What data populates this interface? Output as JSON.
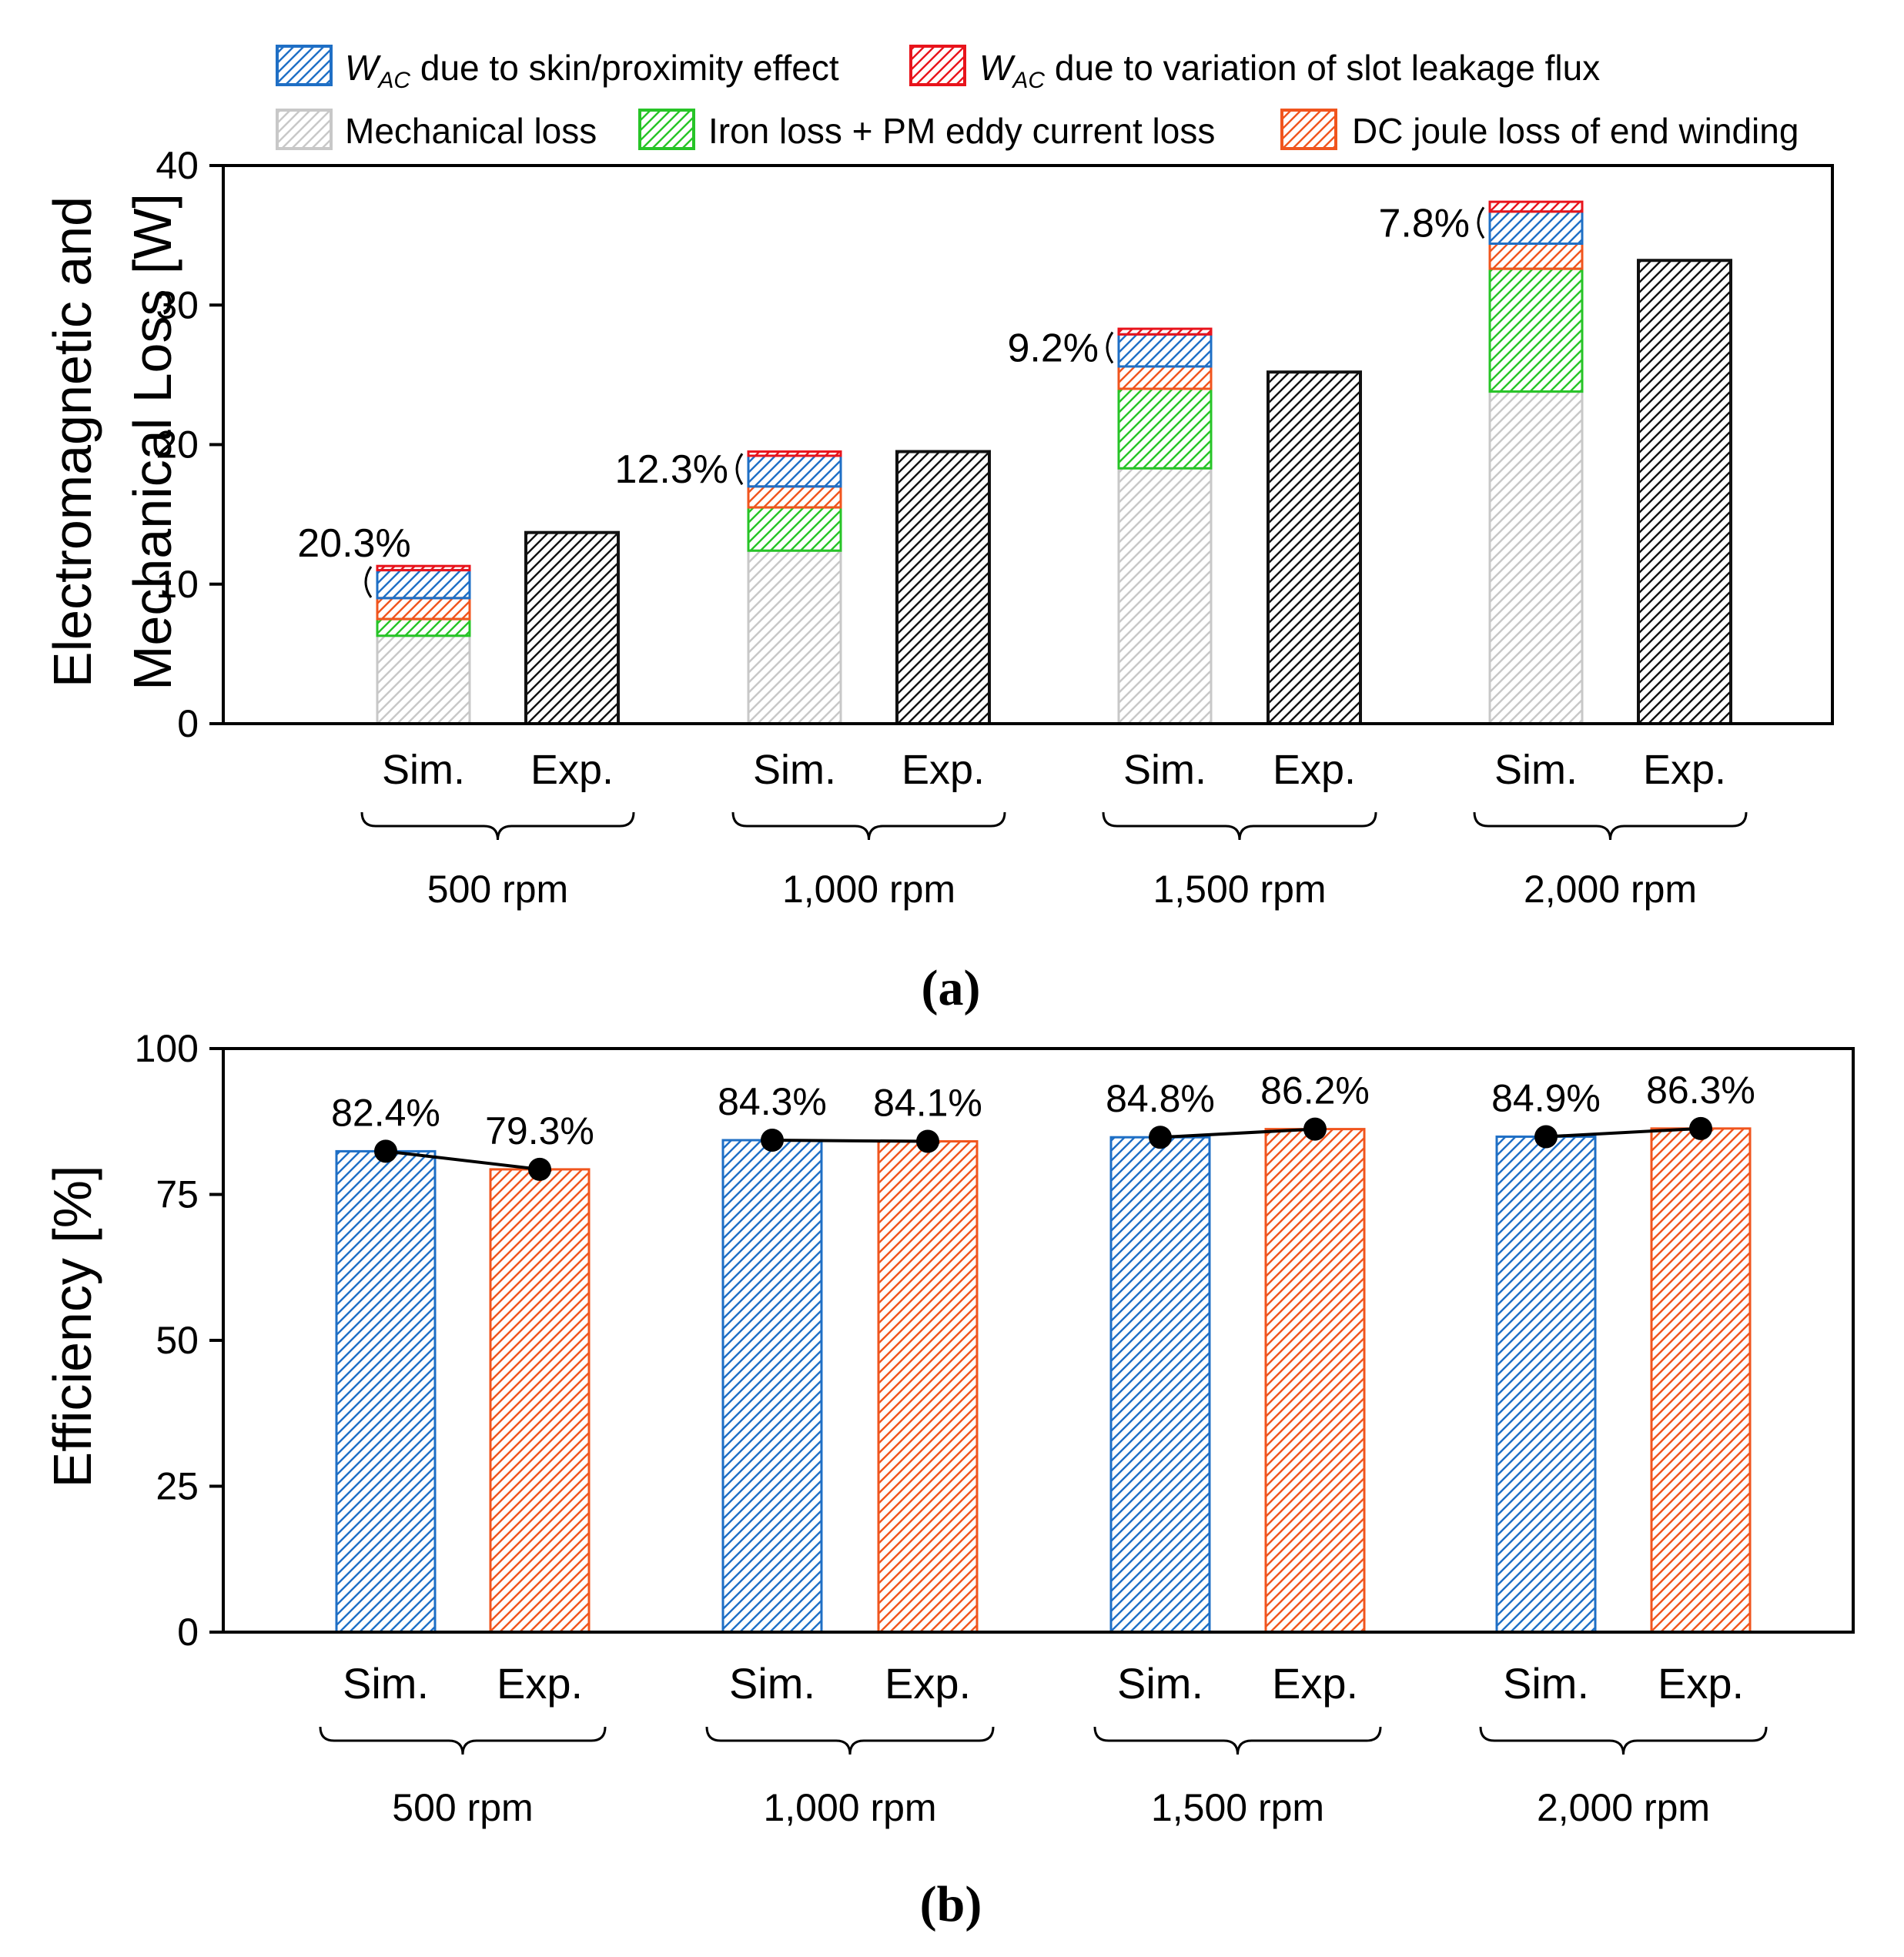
{
  "colors": {
    "wac_skin": "#1f6fc5",
    "wac_leak": "#e8141c",
    "mechanical": "#c8c8c8",
    "iron": "#27c427",
    "dc_end": "#f0551e",
    "exp_loss": "#111111",
    "sim_eff": "#1f6fc5",
    "exp_eff": "#f0551e"
  },
  "legend": {
    "items": [
      {
        "key": "wac_skin",
        "prefix": "W",
        "sub": "AC",
        "label": " due to skin/proximity effect"
      },
      {
        "key": "wac_leak",
        "prefix": "W",
        "sub": "AC",
        "label": " due to variation of slot leakage flux"
      },
      {
        "key": "mechanical",
        "prefix": "",
        "sub": "",
        "label": "Mechanical loss"
      },
      {
        "key": "iron",
        "prefix": "",
        "sub": "",
        "label": "Iron loss + PM eddy current loss"
      },
      {
        "key": "dc_end",
        "prefix": "",
        "sub": "",
        "label": "DC joule loss of end winding"
      }
    ]
  },
  "chart_data": [
    {
      "id": "a",
      "type": "bar",
      "stacked": true,
      "caption": "(a)",
      "ylabel_line1": "Electromagnetic and",
      "ylabel_line2": "Mechanical Loss [W]",
      "ylim": [
        0,
        40
      ],
      "yticks": [
        "0",
        "10",
        "20",
        "30",
        "40"
      ],
      "groups": [
        "500 rpm",
        "1,000 rpm",
        "1,500 rpm",
        "2,000 rpm"
      ],
      "bar_labels": [
        "Sim.",
        "Exp."
      ],
      "sim_stacks": [
        {
          "mechanical": 6.3,
          "iron": 1.2,
          "dc_end": 1.5,
          "wac_skin": 2.0,
          "wac_leak": 0.3
        },
        {
          "mechanical": 12.4,
          "iron": 3.1,
          "dc_end": 1.5,
          "wac_skin": 2.2,
          "wac_leak": 0.3
        },
        {
          "mechanical": 18.3,
          "iron": 5.7,
          "dc_end": 1.6,
          "wac_skin": 2.3,
          "wac_leak": 0.4
        },
        {
          "mechanical": 23.8,
          "iron": 8.8,
          "dc_end": 1.8,
          "wac_skin": 2.3,
          "wac_leak": 0.7
        }
      ],
      "exp_values": [
        13.7,
        19.5,
        25.2,
        33.2
      ],
      "ac_percent": [
        "20.3%",
        "12.3%",
        "9.2%",
        "7.8%"
      ]
    },
    {
      "id": "b",
      "type": "bar",
      "caption": "(b)",
      "ylabel": "Efficiency [%]",
      "ylim": [
        0,
        100
      ],
      "yticks": [
        "0",
        "25",
        "50",
        "75",
        "100"
      ],
      "groups": [
        "500 rpm",
        "1,000 rpm",
        "1,500 rpm",
        "2,000 rpm"
      ],
      "bar_labels": [
        "Sim.",
        "Exp."
      ],
      "series": [
        {
          "name": "Sim.",
          "values": [
            82.4,
            84.3,
            84.8,
            84.9
          ],
          "labels": [
            "82.4%",
            "84.3%",
            "84.8%",
            "84.9%"
          ]
        },
        {
          "name": "Exp.",
          "values": [
            79.3,
            84.1,
            86.2,
            86.3
          ],
          "labels": [
            "79.3%",
            "84.1%",
            "86.2%",
            "86.3%"
          ]
        }
      ]
    }
  ]
}
